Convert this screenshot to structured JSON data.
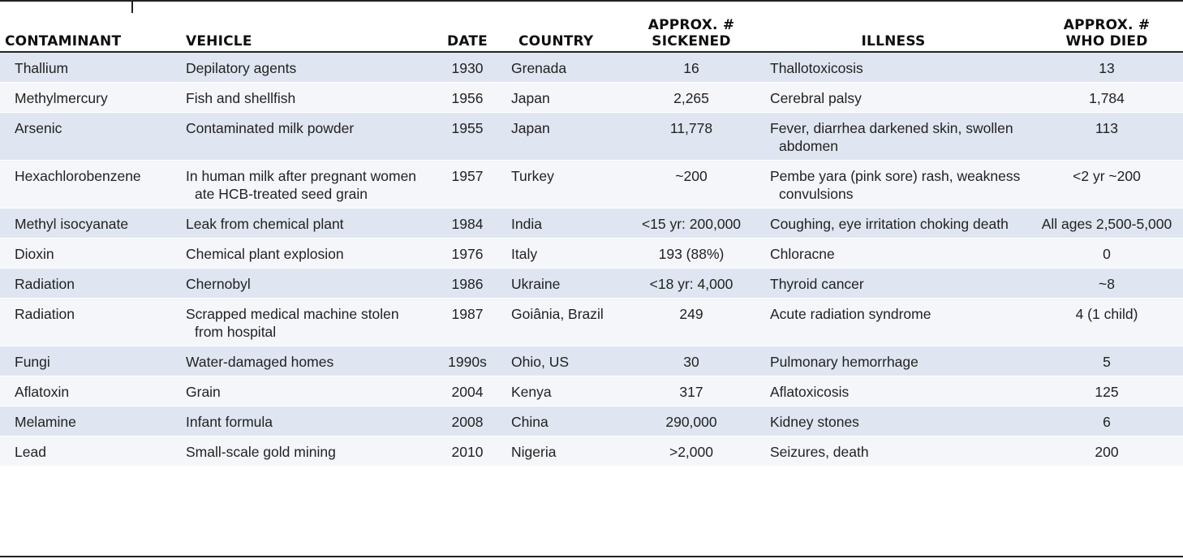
{
  "table": {
    "headers": {
      "contaminant": "CONTAMINANT",
      "vehicle": "VEHICLE",
      "date": "DATE",
      "country": "COUNTRY",
      "sickened_line1": "APPROX. #",
      "sickened_line2": "SICKENED",
      "illness": "ILLNESS",
      "died_line1": "APPROX. #",
      "died_line2": "WHO DIED"
    },
    "rows": [
      {
        "contaminant": "Thallium",
        "vehicle": "Depilatory agents",
        "date": "1930",
        "country": "Grenada",
        "sickened": "16",
        "illness": "Thallotoxicosis",
        "died": "13"
      },
      {
        "contaminant": "Methylmercury",
        "vehicle": "Fish and shellfish",
        "date": "1956",
        "country": "Japan",
        "sickened": "2,265",
        "illness": "Cerebral palsy",
        "died": "1,784"
      },
      {
        "contaminant": "Arsenic",
        "vehicle": "Contaminated milk powder",
        "date": "1955",
        "country": "Japan",
        "sickened": "11,778",
        "illness": "Fever, diarrhea darkened skin, swollen abdomen",
        "died": "113"
      },
      {
        "contaminant": "Hexachlorobenzene",
        "vehicle": "In human milk after pregnant women ate HCB-treated seed grain",
        "date": "1957",
        "country": "Turkey",
        "sickened": "~200",
        "illness": "Pembe yara (pink sore) rash, weakness convulsions",
        "died": "<2 yr ~200"
      },
      {
        "contaminant": "Methyl isocyanate",
        "vehicle": "Leak from chemical plant",
        "date": "1984",
        "country": "India",
        "sickened": "<15 yr: 200,000",
        "illness": "Coughing, eye irritation choking death",
        "died": "All ages 2,500-5,000"
      },
      {
        "contaminant": "Dioxin",
        "vehicle": "Chemical plant explosion",
        "date": "1976",
        "country": "Italy",
        "sickened": "193 (88%)",
        "illness": "Chloracne",
        "died": "0"
      },
      {
        "contaminant": "Radiation",
        "vehicle": "Chernobyl",
        "date": "1986",
        "country": "Ukraine",
        "sickened": "<18 yr: 4,000",
        "illness": "Thyroid cancer",
        "died": "~8"
      },
      {
        "contaminant": "Radiation",
        "vehicle": "Scrapped medical machine stolen from hospital",
        "date": "1987",
        "country": "Goiânia, Brazil",
        "sickened": "249",
        "illness": "Acute radiation syndrome",
        "died": "4 (1 child)"
      },
      {
        "contaminant": "Fungi",
        "vehicle": "Water-damaged homes",
        "date": "1990s",
        "country": "Ohio, US",
        "sickened": "30",
        "illness": "Pulmonary hemorrhage",
        "died": "5"
      },
      {
        "contaminant": "Aflatoxin",
        "vehicle": "Grain",
        "date": "2004",
        "country": "Kenya",
        "sickened": "317",
        "illness": "Aflatoxicosis",
        "died": "125"
      },
      {
        "contaminant": "Melamine",
        "vehicle": "Infant formula",
        "date": "2008",
        "country": "China",
        "sickened": "290,000",
        "illness": "Kidney stones",
        "died": "6"
      },
      {
        "contaminant": "Lead",
        "vehicle": "Small-scale gold mining",
        "date": "2010",
        "country": "Nigeria",
        "sickened": ">2,000",
        "illness": "Seizures, death",
        "died": "200"
      }
    ]
  }
}
